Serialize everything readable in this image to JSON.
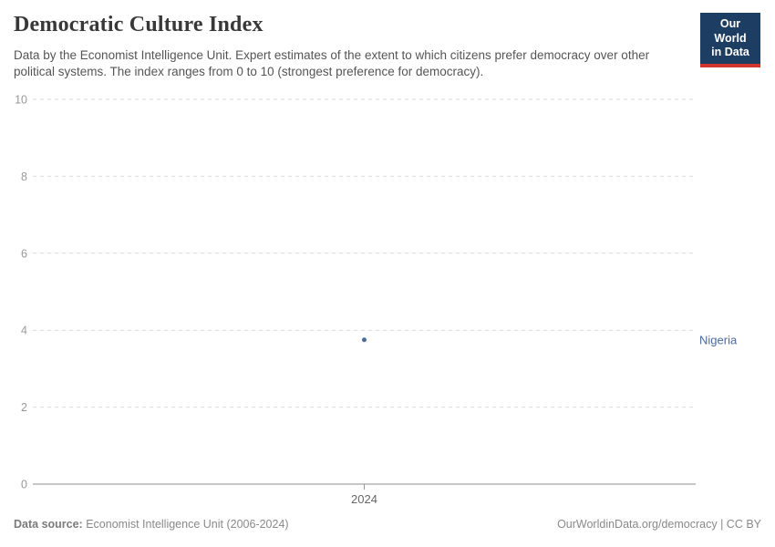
{
  "header": {
    "title": "Democratic Culture Index",
    "subtitle": "Data by the Economist Intelligence Unit. Expert estimates of the extent to which citizens prefer democracy over other political systems. The index ranges from 0 to 10 (strongest preference for democracy).",
    "logo": {
      "line1": "Our World",
      "line2": "in Data",
      "bg_color": "#1d3d63",
      "stripe_color": "#d0342c"
    }
  },
  "chart_data": {
    "type": "scatter",
    "title": "Democratic Culture Index",
    "x": [
      2024
    ],
    "series": [
      {
        "name": "Nigeria",
        "values": [
          3.75
        ],
        "color": "#4c6a9c"
      }
    ],
    "xticks": [
      "2024"
    ],
    "yticks": [
      0,
      2,
      4,
      6,
      8,
      10
    ],
    "ylim": [
      0,
      10
    ],
    "xlabel": "",
    "ylabel": "",
    "grid": "horizontal-dashed",
    "legend_position": "right-entity-label"
  },
  "footer": {
    "source_label": "Data source:",
    "source_text": "Economist Intelligence Unit (2006-2024)",
    "right_text": "OurWorldinData.org/democracy | CC BY"
  }
}
